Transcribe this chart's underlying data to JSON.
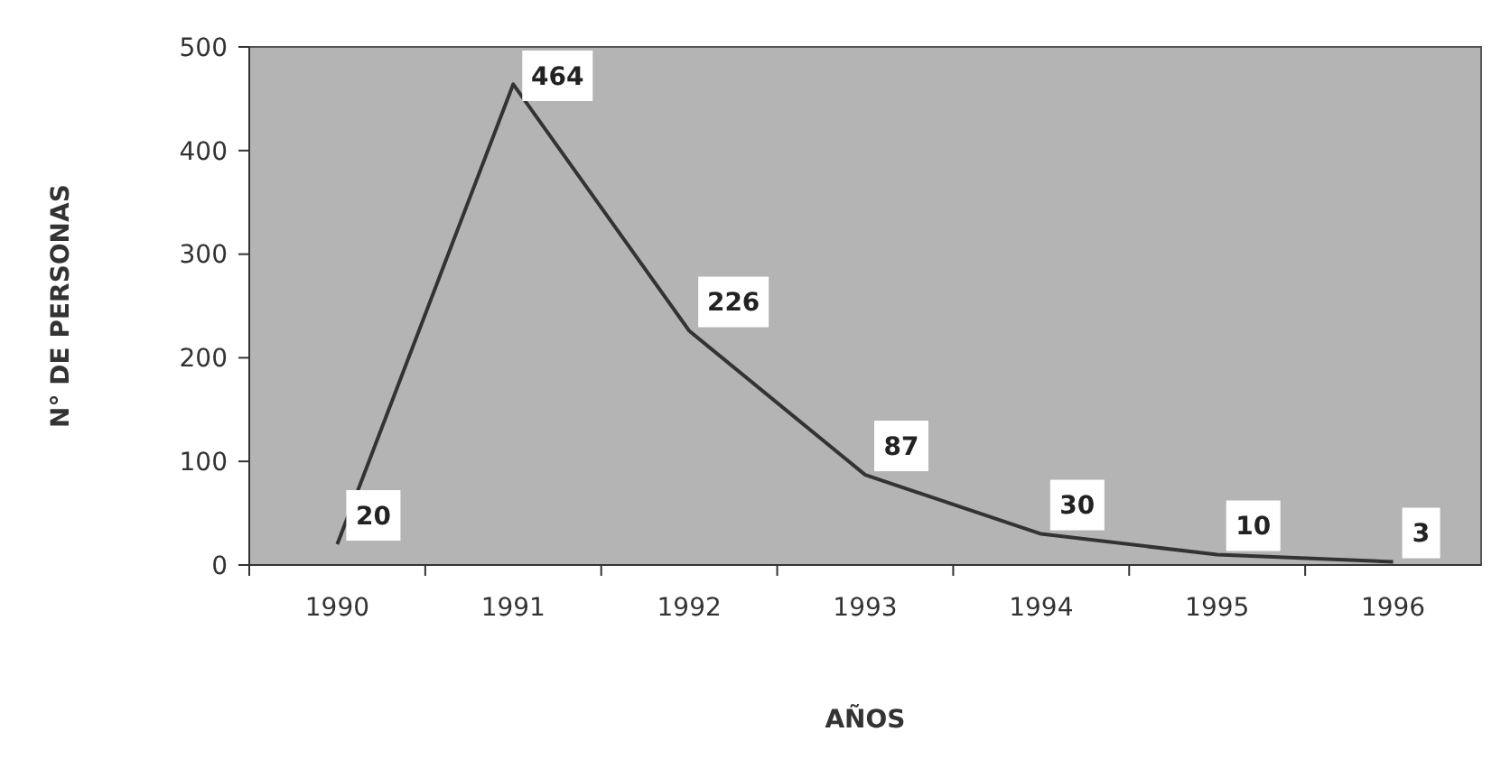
{
  "chart_data": {
    "type": "line",
    "xlabel": "AÑOS",
    "ylabel": "N° DE PERSONAS",
    "categories": [
      "1990",
      "1991",
      "1992",
      "1993",
      "1994",
      "1995",
      "1996"
    ],
    "series": [
      {
        "color": "#333333",
        "values": [
          20,
          464,
          226,
          87,
          30,
          10,
          3
        ]
      }
    ],
    "ylim": [
      0,
      500
    ],
    "yticks": [
      0,
      100,
      200,
      300,
      400,
      500
    ],
    "grid": false,
    "data_labels": true,
    "marker": "none",
    "line_style": "solid"
  }
}
